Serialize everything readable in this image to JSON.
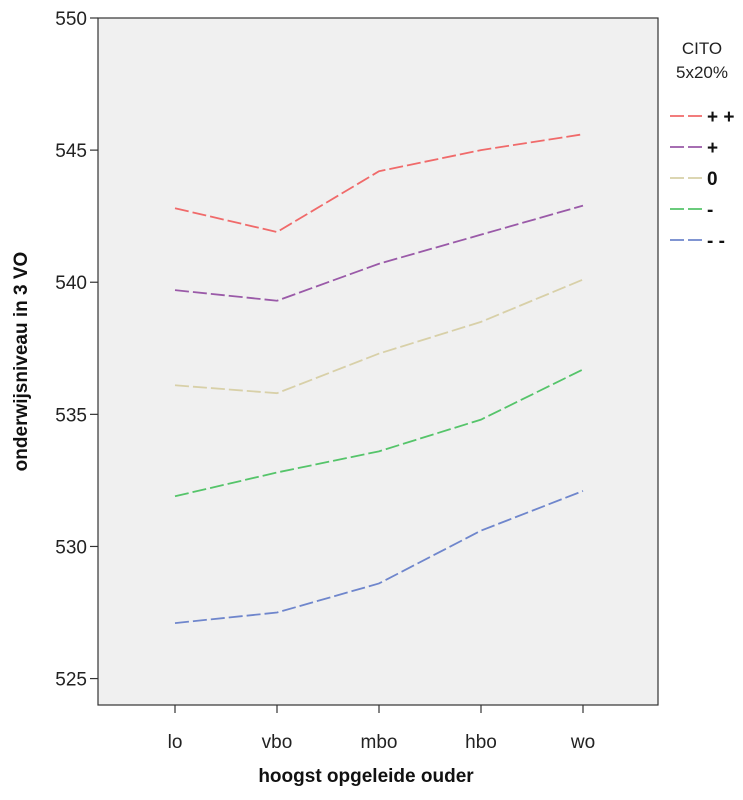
{
  "chart_data": {
    "type": "line",
    "xlabel": "hoogst opgeleide ouder",
    "ylabel": "onderwijsniveau in 3 VO",
    "categories": [
      "lo",
      "vbo",
      "mbo",
      "hbo",
      "wo"
    ],
    "ylim": [
      524,
      550
    ],
    "yticks": [
      525,
      530,
      535,
      540,
      545,
      550
    ],
    "grid": false,
    "legend": {
      "title_line1": "CITO",
      "title_line2": "5x20%",
      "placement": "right"
    },
    "series": [
      {
        "name": "+ +",
        "color": "#f06a6a",
        "values": [
          542.8,
          541.9,
          544.2,
          545.0,
          545.6
        ]
      },
      {
        "name": "+",
        "color": "#9a5aa8",
        "values": [
          539.7,
          539.3,
          540.7,
          541.8,
          542.9
        ]
      },
      {
        "name": "0",
        "color": "#d8d0a8",
        "values": [
          536.1,
          535.8,
          537.3,
          538.5,
          540.1
        ]
      },
      {
        "name": "-",
        "color": "#55c46a",
        "values": [
          531.9,
          532.8,
          533.6,
          534.8,
          536.7
        ]
      },
      {
        "name": "- -",
        "color": "#6f86cc",
        "values": [
          527.1,
          527.5,
          528.6,
          530.6,
          532.1
        ]
      }
    ]
  },
  "colors": {
    "plot_background": "#f0f0f0",
    "axis": "#333333"
  }
}
